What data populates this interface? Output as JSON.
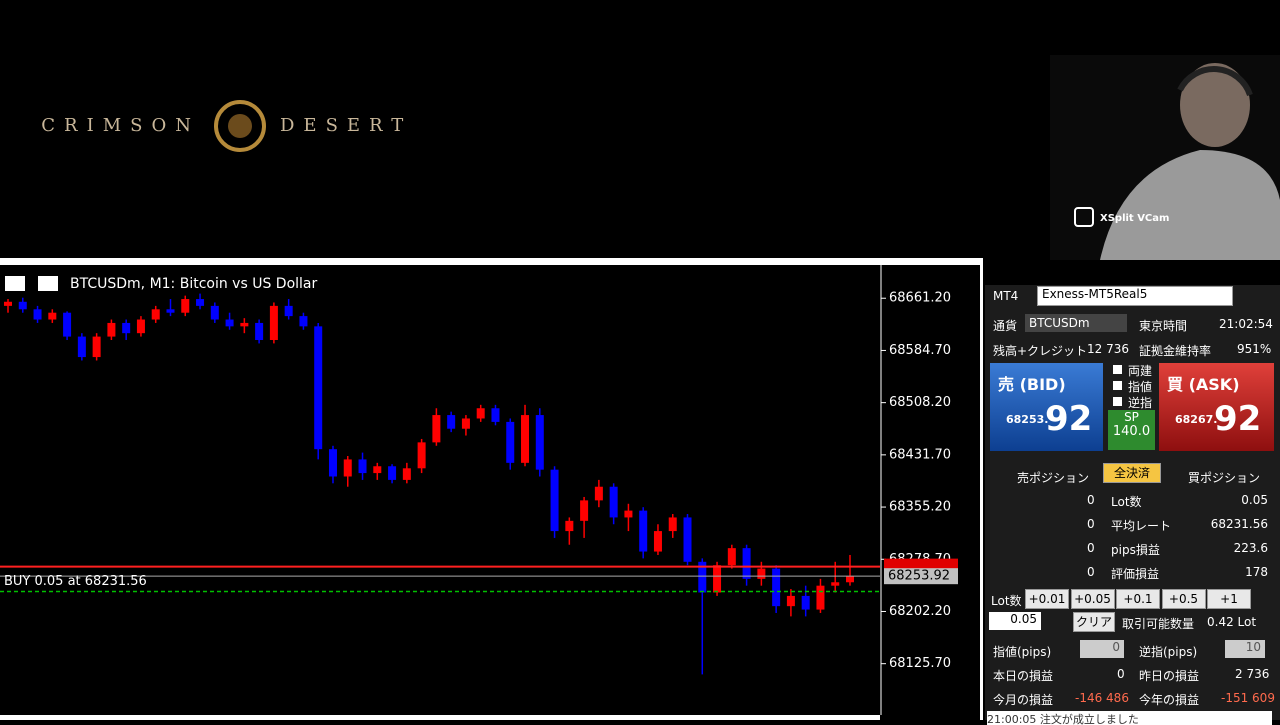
{
  "game": {
    "logo_left": "CRIMSON",
    "logo_right": "DESERT"
  },
  "webcam": {
    "label": "XSplit VCam"
  },
  "chart_data": {
    "type": "candlestick",
    "title": "BTCUSDm, M1:  Bitcoin vs US Dollar",
    "colors": {
      "up": "#ff0000",
      "down": "#0000ff"
    },
    "open": [
      68650,
      68656,
      68645,
      68630,
      68640,
      68605,
      68575,
      68605,
      68625,
      68610,
      68630,
      68645,
      68640,
      68660,
      68650,
      68630,
      68620,
      68625,
      68600,
      68650,
      68635,
      68620,
      68440,
      68400,
      68425,
      68405,
      68415,
      68395,
      68412,
      68450,
      68490,
      68470,
      68485,
      68500,
      68480,
      68420,
      68490,
      68410,
      68320,
      68335,
      68365,
      68385,
      68340,
      68350,
      68290,
      68320,
      68340,
      68275,
      68230,
      68270,
      68295,
      68250,
      68265,
      68210,
      68225,
      68205,
      68240,
      68245
    ],
    "high": [
      68660,
      68662,
      68650,
      68645,
      68642,
      68610,
      68610,
      68630,
      68630,
      68635,
      68650,
      68660,
      68665,
      68668,
      68655,
      68640,
      68632,
      68630,
      68655,
      68660,
      68640,
      68625,
      68445,
      68430,
      68435,
      68420,
      68418,
      68420,
      68455,
      68500,
      68495,
      68490,
      68505,
      68505,
      68485,
      68505,
      68500,
      68415,
      68340,
      68370,
      68395,
      68390,
      68360,
      68355,
      68330,
      68345,
      68345,
      68280,
      68275,
      68300,
      68300,
      68275,
      68270,
      68235,
      68240,
      68250,
      68275,
      68285
    ],
    "low": [
      68640,
      68640,
      68625,
      68625,
      68600,
      68570,
      68570,
      68600,
      68600,
      68605,
      68625,
      68635,
      68635,
      68645,
      68625,
      68615,
      68610,
      68595,
      68595,
      68630,
      68615,
      68425,
      68390,
      68385,
      68395,
      68395,
      68390,
      68390,
      68405,
      68445,
      68465,
      68460,
      68480,
      68475,
      68410,
      68415,
      68400,
      68310,
      68300,
      68310,
      68355,
      68330,
      68320,
      68280,
      68285,
      68310,
      68270,
      68110,
      68225,
      68265,
      68240,
      68240,
      68200,
      68195,
      68195,
      68200,
      68230,
      68240
    ],
    "close": [
      68656,
      68645,
      68630,
      68640,
      68605,
      68575,
      68605,
      68625,
      68610,
      68630,
      68645,
      68640,
      68660,
      68650,
      68630,
      68620,
      68625,
      68600,
      68650,
      68635,
      68620,
      68440,
      68400,
      68425,
      68405,
      68415,
      68395,
      68412,
      68450,
      68490,
      68470,
      68485,
      68500,
      68480,
      68420,
      68490,
      68410,
      68320,
      68335,
      68365,
      68385,
      68340,
      68350,
      68290,
      68320,
      68340,
      68275,
      68230,
      68270,
      68295,
      68250,
      68265,
      68210,
      68225,
      68205,
      68240,
      68245,
      68253.92
    ],
    "ylim": [
      68050.5,
      68709.9
    ],
    "yticks": [
      {
        "value": 68661.2,
        "label": "68661.20"
      },
      {
        "value": 68584.7,
        "label": "68584.70"
      },
      {
        "value": 68508.2,
        "label": "68508.20"
      },
      {
        "value": 68431.7,
        "label": "68431.70"
      },
      {
        "value": 68355.2,
        "label": "68355.20"
      },
      {
        "value": 68278.7,
        "label": "68278.70"
      },
      {
        "value": 68202.2,
        "label": "68202.20"
      },
      {
        "value": 68125.7,
        "label": "68125.70"
      }
    ],
    "bid_line": 68253.92,
    "ask_line": 68267.92,
    "order_line": {
      "label": "BUY 0.05 at 68231.56",
      "value": 68231.56
    }
  },
  "panel": {
    "app": "MT4",
    "server": "Exness-MT5Real5",
    "currency_label": "通貨",
    "currency": "BTCUSDm",
    "time_label": "東京時間",
    "time": "21:02:54",
    "balance_label": "残高+クレジット",
    "balance": "12 736",
    "margin_label": "証拠金維持率",
    "margin": "951%",
    "bid_label": "売 (BID)",
    "bid_main": "68253.",
    "bid_pips": "92",
    "ask_label": "買 (ASK)",
    "ask_main": "68267.",
    "ask_pips": "92",
    "options": [
      "両建",
      "指値",
      "逆指"
    ],
    "sp_label": "SP",
    "sp": "140.0",
    "sell_pos": "売ポジション",
    "close_all": "全決済",
    "buy_pos": "買ポジション",
    "rows": [
      [
        "0",
        "Lot数",
        "0.05"
      ],
      [
        "0",
        "平均レート",
        "68231.56"
      ],
      [
        "0",
        "pips損益",
        "223.6"
      ],
      [
        "0",
        "評価損益",
        "178"
      ]
    ],
    "lot_label": "Lot数",
    "lot_buttons": [
      "+0.01",
      "+0.05",
      "+0.1",
      "+0.5",
      "+1"
    ],
    "lot": "0.05",
    "clear": "クリア",
    "tradable_label": "取引可能数量",
    "tradable": "0.42 Lot",
    "limit_label": "指値(pips)",
    "limit": "0",
    "stop_label": "逆指(pips)",
    "stop": "10",
    "today_label": "本日の損益",
    "today": "0",
    "yesterday_label": "昨日の損益",
    "yesterday": "2 736",
    "month_label": "今月の損益",
    "month": "-146 486",
    "year_label": "今年の損益",
    "year": "-151 609",
    "log": "21:00:05 注文が成立しました"
  }
}
